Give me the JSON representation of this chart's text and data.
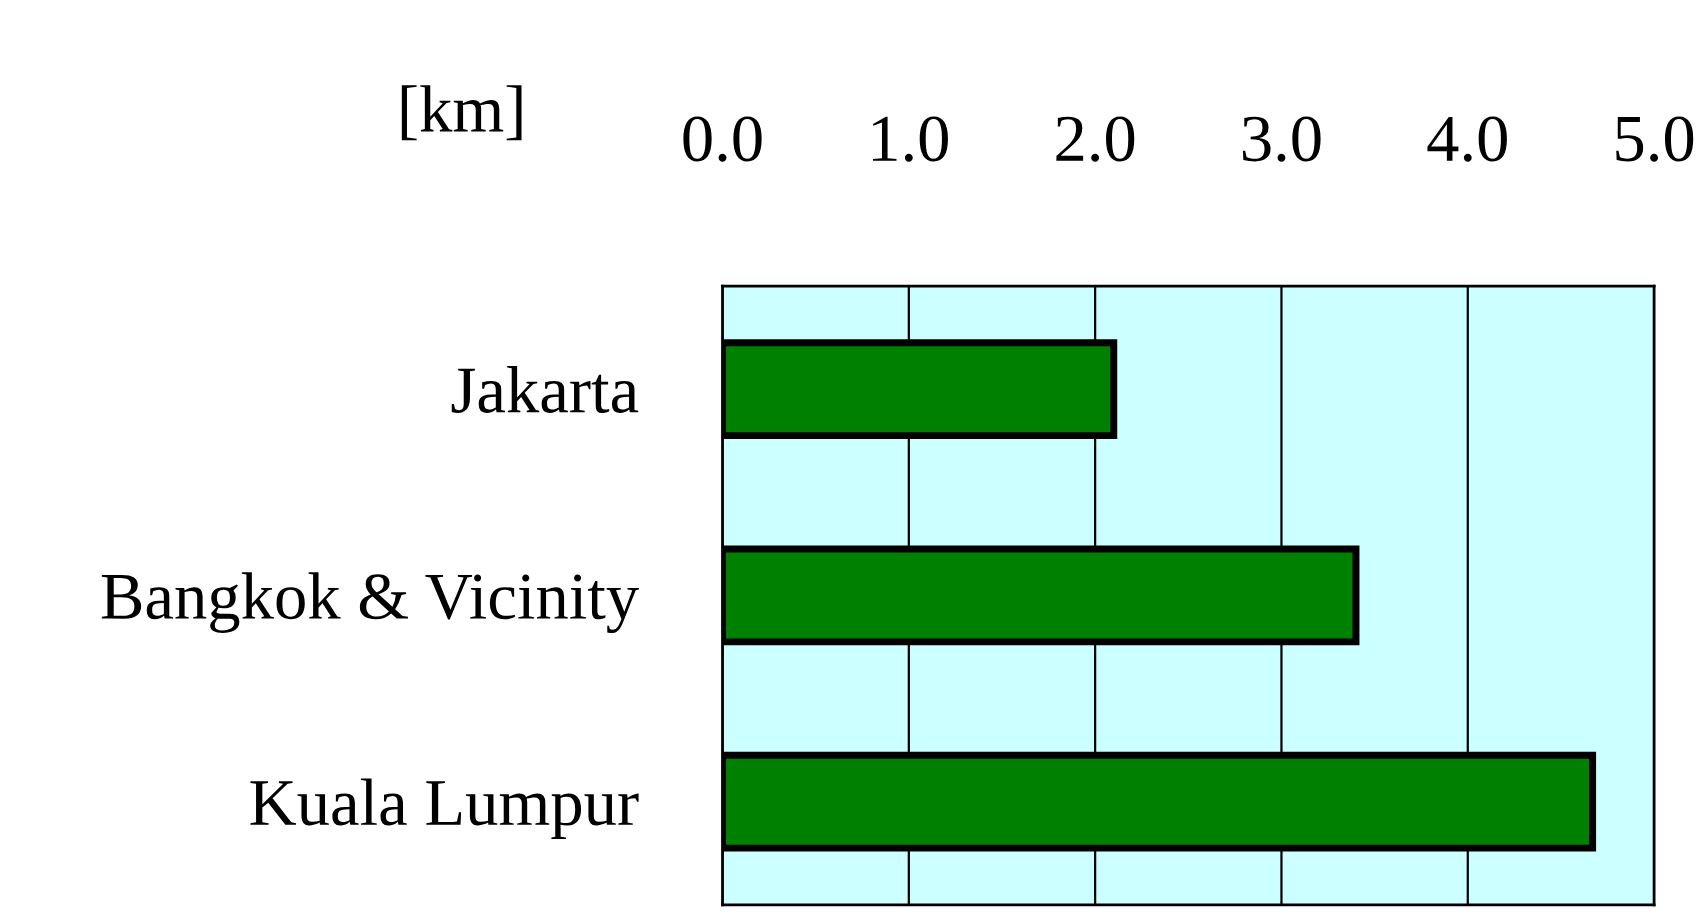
{
  "chart_data": {
    "type": "bar",
    "orientation": "horizontal",
    "xlabel": "[km]",
    "categories": [
      "Jakarta",
      "Bangkok & Vicinity",
      "Kuala Lumpur"
    ],
    "values": [
      2.1,
      3.4,
      4.67
    ],
    "color": "#008000",
    "xlim": [
      0,
      5
    ],
    "xticks": [
      {
        "value": 0,
        "label": "0.0"
      },
      {
        "value": 1,
        "label": "1.0"
      },
      {
        "value": 2,
        "label": "2.0"
      },
      {
        "value": 3,
        "label": "3.0"
      },
      {
        "value": 4,
        "label": "4.0"
      },
      {
        "value": 5,
        "label": "5.0"
      }
    ],
    "grid": "x"
  }
}
